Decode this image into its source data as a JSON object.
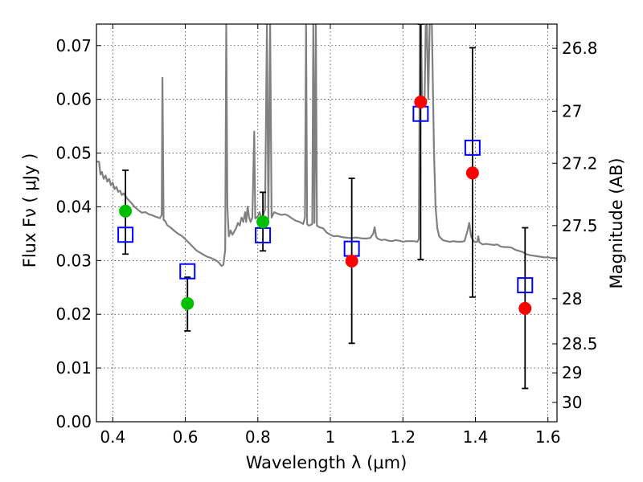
{
  "chart_data": {
    "type": "scatter",
    "xlabel": "Wavelength  λ (μm)",
    "ylabel": "Flux  Fν  ( μJy )",
    "y2label": "Magnitude (AB)",
    "xlim": [
      0.355,
      1.625
    ],
    "ylim": [
      0.0,
      0.074
    ],
    "grid": true,
    "x_ticks": [
      0.4,
      0.6,
      0.8,
      1.0,
      1.2,
      1.4,
      1.6
    ],
    "x_tick_labels": [
      "0.4",
      "0.6",
      "0.8",
      "1",
      "1.2",
      "1.4",
      "1.6"
    ],
    "y_ticks": [
      0.0,
      0.01,
      0.02,
      0.03,
      0.04,
      0.05,
      0.06,
      0.07
    ],
    "y_tick_labels": [
      "0.00",
      "0.01",
      "0.02",
      "0.03",
      "0.04",
      "0.05",
      "0.06",
      "0.07"
    ],
    "right_axis_ticks": [
      {
        "label": "26.8",
        "flux": 0.0695
      },
      {
        "label": "27",
        "flux": 0.0578
      },
      {
        "label": "27.2",
        "flux": 0.0481
      },
      {
        "label": "27.5",
        "flux": 0.0365
      },
      {
        "label": "28",
        "flux": 0.0229
      },
      {
        "label": "28.5",
        "flux": 0.0145
      },
      {
        "label": "29",
        "flux": 0.0091
      },
      {
        "label": "30",
        "flux": 0.0036
      }
    ],
    "series": [
      {
        "kind": "model_spectrum",
        "color": "#808080",
        "points": [
          [
            0.355,
            0.0484
          ],
          [
            0.362,
            0.0484
          ],
          [
            0.366,
            0.046
          ],
          [
            0.37,
            0.0465
          ],
          [
            0.375,
            0.0452
          ],
          [
            0.38,
            0.0458
          ],
          [
            0.385,
            0.0447
          ],
          [
            0.39,
            0.0452
          ],
          [
            0.395,
            0.044
          ],
          [
            0.4,
            0.0445
          ],
          [
            0.405,
            0.0433
          ],
          [
            0.41,
            0.0437
          ],
          [
            0.415,
            0.0428
          ],
          [
            0.42,
            0.043
          ],
          [
            0.425,
            0.0422
          ],
          [
            0.43,
            0.0425
          ],
          [
            0.44,
            0.0415
          ],
          [
            0.45,
            0.0408
          ],
          [
            0.46,
            0.04
          ],
          [
            0.47,
            0.0394
          ],
          [
            0.48,
            0.0389
          ],
          [
            0.49,
            0.039
          ],
          [
            0.5,
            0.0386
          ],
          [
            0.51,
            0.0384
          ],
          [
            0.52,
            0.0381
          ],
          [
            0.53,
            0.0379
          ],
          [
            0.535,
            0.0385
          ],
          [
            0.537,
            0.064
          ],
          [
            0.54,
            0.0376
          ],
          [
            0.545,
            0.0373
          ],
          [
            0.55,
            0.0366
          ],
          [
            0.56,
            0.0361
          ],
          [
            0.57,
            0.0355
          ],
          [
            0.58,
            0.035
          ],
          [
            0.59,
            0.0346
          ],
          [
            0.6,
            0.034
          ],
          [
            0.61,
            0.0333
          ],
          [
            0.62,
            0.0326
          ],
          [
            0.63,
            0.0319
          ],
          [
            0.64,
            0.0315
          ],
          [
            0.65,
            0.0311
          ],
          [
            0.66,
            0.0307
          ],
          [
            0.67,
            0.0305
          ],
          [
            0.68,
            0.0302
          ],
          [
            0.69,
            0.0298
          ],
          [
            0.7,
            0.029
          ],
          [
            0.705,
            0.0292
          ],
          [
            0.71,
            0.032
          ],
          [
            0.713,
            0.074
          ],
          [
            0.716,
            0.04
          ],
          [
            0.72,
            0.0345
          ],
          [
            0.725,
            0.0356
          ],
          [
            0.73,
            0.0348
          ],
          [
            0.74,
            0.036
          ],
          [
            0.745,
            0.037
          ],
          [
            0.75,
            0.0365
          ],
          [
            0.755,
            0.038
          ],
          [
            0.76,
            0.0372
          ],
          [
            0.765,
            0.039
          ],
          [
            0.768,
            0.0372
          ],
          [
            0.772,
            0.04
          ],
          [
            0.776,
            0.038
          ],
          [
            0.78,
            0.0372
          ],
          [
            0.785,
            0.038
          ],
          [
            0.79,
            0.054
          ],
          [
            0.793,
            0.0378
          ],
          [
            0.8,
            0.0382
          ],
          [
            0.805,
            0.039
          ],
          [
            0.81,
            0.0378
          ],
          [
            0.815,
            0.0385
          ],
          [
            0.82,
            0.0395
          ],
          [
            0.825,
            0.074
          ],
          [
            0.829,
            0.0378
          ],
          [
            0.834,
            0.074
          ],
          [
            0.838,
            0.038
          ],
          [
            0.845,
            0.039
          ],
          [
            0.855,
            0.0387
          ],
          [
            0.865,
            0.0385
          ],
          [
            0.875,
            0.0386
          ],
          [
            0.885,
            0.0383
          ],
          [
            0.895,
            0.0378
          ],
          [
            0.905,
            0.0374
          ],
          [
            0.915,
            0.0372
          ],
          [
            0.925,
            0.0368
          ],
          [
            0.93,
            0.038
          ],
          [
            0.933,
            0.074
          ],
          [
            0.936,
            0.0368
          ],
          [
            0.94,
            0.0365
          ],
          [
            0.945,
            0.0366
          ],
          [
            0.95,
            0.0368
          ],
          [
            0.953,
            0.074
          ],
          [
            0.956,
            0.037
          ],
          [
            0.96,
            0.074
          ],
          [
            0.963,
            0.0365
          ],
          [
            0.97,
            0.0362
          ],
          [
            0.98,
            0.036
          ],
          [
            0.99,
            0.0352
          ],
          [
            1.0,
            0.0348
          ],
          [
            1.01,
            0.0345
          ],
          [
            1.02,
            0.0346
          ],
          [
            1.03,
            0.0344
          ],
          [
            1.04,
            0.0343
          ],
          [
            1.05,
            0.0342
          ],
          [
            1.06,
            0.0342
          ],
          [
            1.07,
            0.0343
          ],
          [
            1.08,
            0.0342
          ],
          [
            1.09,
            0.0341
          ],
          [
            1.1,
            0.0341
          ],
          [
            1.11,
            0.0342
          ],
          [
            1.118,
            0.035
          ],
          [
            1.122,
            0.0362
          ],
          [
            1.126,
            0.0345
          ],
          [
            1.13,
            0.0341
          ],
          [
            1.14,
            0.0338
          ],
          [
            1.15,
            0.0339
          ],
          [
            1.16,
            0.0337
          ],
          [
            1.17,
            0.0336
          ],
          [
            1.18,
            0.0338
          ],
          [
            1.19,
            0.0337
          ],
          [
            1.2,
            0.0335
          ],
          [
            1.21,
            0.0336
          ],
          [
            1.22,
            0.0336
          ],
          [
            1.23,
            0.0336
          ],
          [
            1.24,
            0.0335
          ],
          [
            1.244,
            0.034
          ],
          [
            1.247,
            0.074
          ],
          [
            1.25,
            0.074
          ],
          [
            1.253,
            0.06
          ],
          [
            1.256,
            0.059
          ],
          [
            1.26,
            0.06
          ],
          [
            1.263,
            0.074
          ],
          [
            1.266,
            0.074
          ],
          [
            1.27,
            0.06
          ],
          [
            1.274,
            0.074
          ],
          [
            1.28,
            0.074
          ],
          [
            1.286,
            0.05
          ],
          [
            1.29,
            0.04
          ],
          [
            1.295,
            0.036
          ],
          [
            1.3,
            0.0345
          ],
          [
            1.31,
            0.0338
          ],
          [
            1.32,
            0.0336
          ],
          [
            1.33,
            0.0335
          ],
          [
            1.34,
            0.0336
          ],
          [
            1.35,
            0.0335
          ],
          [
            1.36,
            0.0335
          ],
          [
            1.37,
            0.0336
          ],
          [
            1.378,
            0.0355
          ],
          [
            1.383,
            0.037
          ],
          [
            1.388,
            0.0345
          ],
          [
            1.395,
            0.0336
          ],
          [
            1.4,
            0.0334
          ],
          [
            1.405,
            0.0335
          ],
          [
            1.408,
            0.0345
          ],
          [
            1.411,
            0.0334
          ],
          [
            1.42,
            0.033
          ],
          [
            1.43,
            0.0331
          ],
          [
            1.44,
            0.033
          ],
          [
            1.45,
            0.0329
          ],
          [
            1.46,
            0.033
          ],
          [
            1.47,
            0.0326
          ],
          [
            1.48,
            0.0325
          ],
          [
            1.49,
            0.0325
          ],
          [
            1.5,
            0.0324
          ],
          [
            1.51,
            0.032
          ],
          [
            1.52,
            0.0318
          ],
          [
            1.53,
            0.0316
          ],
          [
            1.54,
            0.0312
          ],
          [
            1.55,
            0.031
          ],
          [
            1.56,
            0.0309
          ],
          [
            1.57,
            0.0308
          ],
          [
            1.58,
            0.0307
          ],
          [
            1.59,
            0.0306
          ],
          [
            1.6,
            0.0306
          ],
          [
            1.61,
            0.0305
          ],
          [
            1.625,
            0.0304
          ]
        ]
      },
      {
        "kind": "model_photometry",
        "marker": "open-square",
        "color": "#0000ff",
        "points": [
          {
            "x": 0.435,
            "y": 0.0348
          },
          {
            "x": 0.606,
            "y": 0.028
          },
          {
            "x": 0.814,
            "y": 0.0347
          },
          {
            "x": 1.059,
            "y": 0.0322
          },
          {
            "x": 1.249,
            "y": 0.0573
          },
          {
            "x": 1.392,
            "y": 0.051
          },
          {
            "x": 1.537,
            "y": 0.0254
          }
        ]
      },
      {
        "kind": "observed_detection",
        "marker": "filled-circle",
        "color": "#00bf00",
        "points": [
          {
            "x": 0.435,
            "y": 0.0392,
            "yerr_low": 0.0312,
            "yerr_high": 0.0468
          },
          {
            "x": 0.606,
            "y": 0.022,
            "yerr_low": 0.0169,
            "yerr_high": 0.0269
          },
          {
            "x": 0.814,
            "y": 0.0372,
            "yerr_low": 0.0318,
            "yerr_high": 0.0427
          }
        ]
      },
      {
        "kind": "observed_measurement",
        "marker": "filled-circle",
        "color": "#ff0000",
        "points": [
          {
            "x": 1.059,
            "y": 0.0299,
            "yerr_low": 0.0146,
            "yerr_high": 0.0453
          },
          {
            "x": 1.249,
            "y": 0.0595,
            "yerr_low": 0.0302,
            "yerr_high": 0.074
          },
          {
            "x": 1.392,
            "y": 0.0463,
            "yerr_low": 0.0232,
            "yerr_high": 0.0696
          },
          {
            "x": 1.537,
            "y": 0.0211,
            "yerr_low": 0.0062,
            "yerr_high": 0.0361
          }
        ]
      }
    ]
  }
}
